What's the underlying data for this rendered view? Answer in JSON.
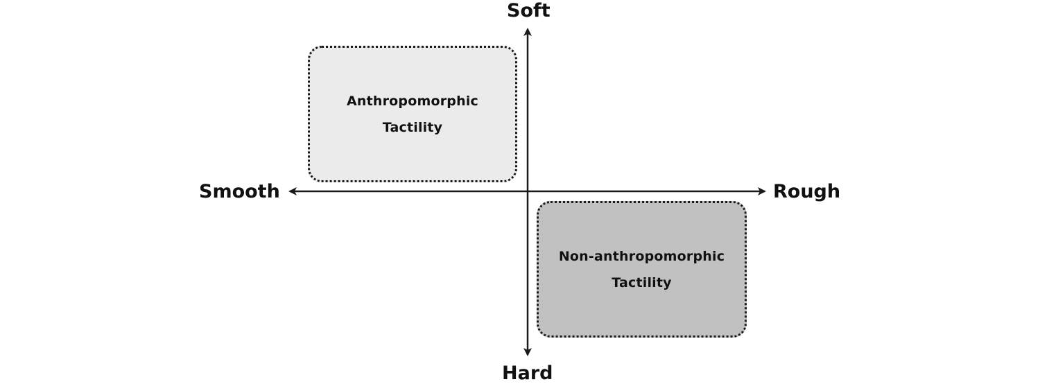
{
  "axes": {
    "top": "Soft",
    "bottom": "Hard",
    "left": "Smooth",
    "right": "Rough"
  },
  "quadrants": {
    "top_left": {
      "line1": "Anthropomorphic",
      "line2": "Tactility",
      "fill": "#ebebeb"
    },
    "bottom_right": {
      "line1": "Non-anthropomorphic",
      "line2": "Tactility",
      "fill": "#c1c1c1"
    }
  }
}
